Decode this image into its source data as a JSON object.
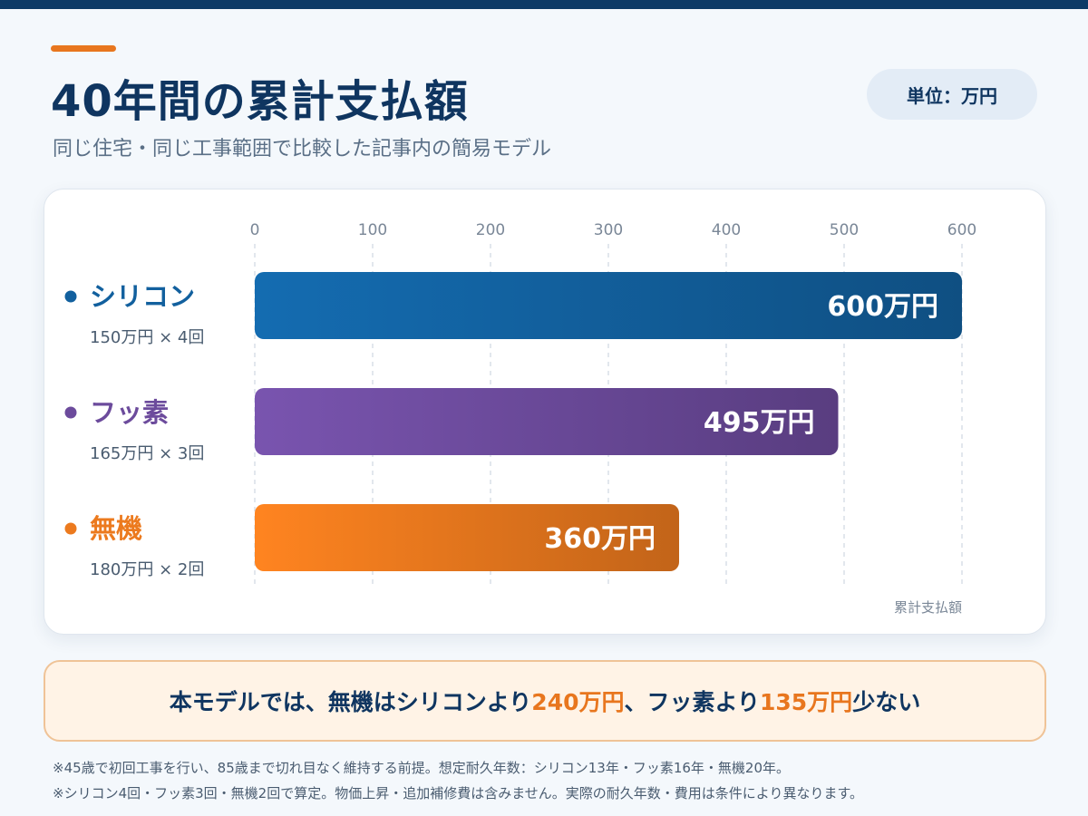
{
  "header": {
    "title": "40年間の累計支払額",
    "subtitle": "同じ住宅・同じ工事範囲で比較した記事内の簡易モデル",
    "unit_badge": "単位：万円"
  },
  "chart_data": {
    "type": "bar",
    "orientation": "horizontal",
    "categories": [
      "シリコン",
      "フッ素",
      "無機"
    ],
    "sublabels": [
      "150万円 × 4回",
      "165万円 × 3回",
      "180万円 × 2回"
    ],
    "values": [
      600,
      495,
      360
    ],
    "value_labels": [
      "600万円",
      "495万円",
      "360万円"
    ],
    "colors": [
      "#12609e",
      "#6c4b9c",
      "#ec7a1e"
    ],
    "xlim": [
      0,
      600
    ],
    "xticks": [
      0,
      100,
      200,
      300,
      400,
      500,
      600
    ],
    "xlabel": "累計支払額",
    "grid": true
  },
  "callout": {
    "part1": "本モデルでは、無機はシリコンより",
    "hl1": "240万円",
    "part2": "、フッ素より",
    "hl2": "135万円",
    "part3": "少ない"
  },
  "notes": [
    "※45歳で初回工事を行い、85歳まで切れ目なく維持する前提。想定耐久年数：シリコン13年・フッ素16年・無機20年。",
    "※シリコン4回・フッ素3回・無機2回で算定。物価上昇・追加補修費は含みません。実際の耐久年数・費用は条件により異なります。"
  ]
}
